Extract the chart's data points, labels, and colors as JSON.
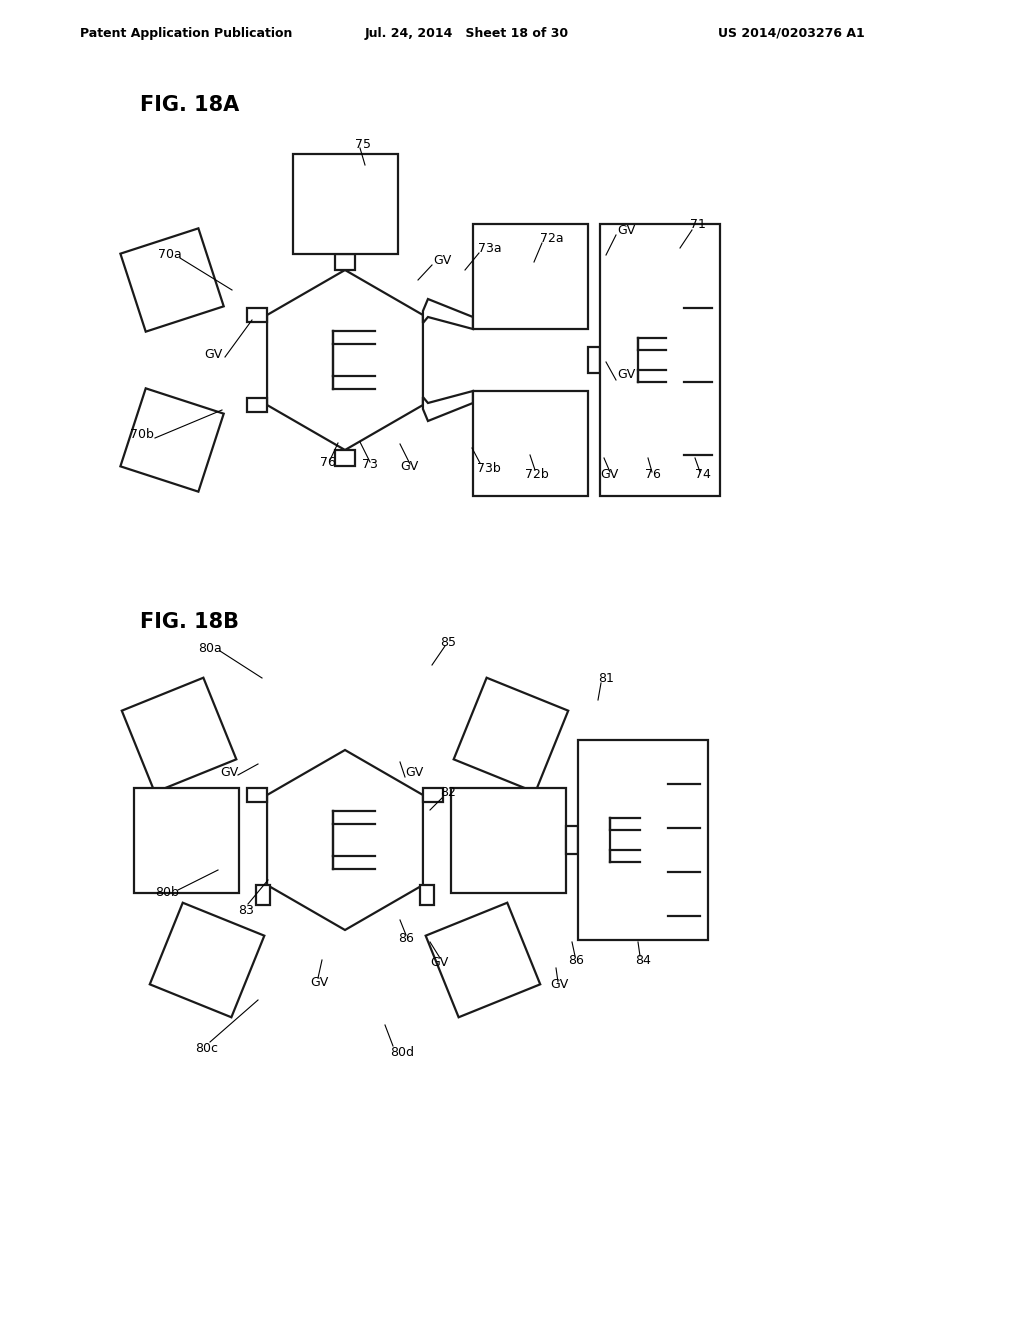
{
  "header_left": "Patent Application Publication",
  "header_mid": "Jul. 24, 2014   Sheet 18 of 30",
  "header_right": "US 2014/0203276 A1",
  "fig_a_label": "FIG. 18A",
  "fig_b_label": "FIG. 18B",
  "bg_color": "#ffffff",
  "line_color": "#1a1a1a",
  "lw": 1.6
}
